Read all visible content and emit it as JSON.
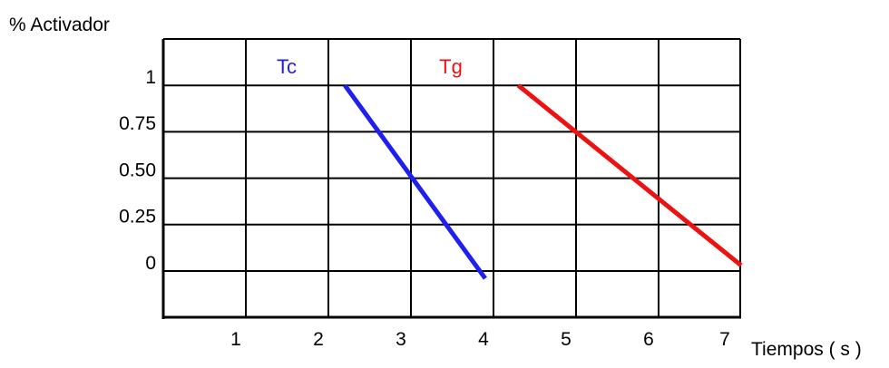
{
  "chart_data": {
    "type": "line",
    "ylabel": "% Activador",
    "xlabel": "Tiempos ( s )",
    "x_ticks": [
      "1",
      "2",
      "3",
      "4",
      "5",
      "6",
      "7"
    ],
    "y_ticks": [
      "1",
      "0.75",
      "0.50",
      "0.25",
      "0"
    ],
    "xlim": [
      0,
      7.2
    ],
    "ylim": [
      -0.25,
      1.25
    ],
    "grid": true,
    "series": [
      {
        "name": "Tc",
        "color": "#1f1ff0",
        "points": [
          {
            "x": 2.2,
            "y": 1.0
          },
          {
            "x": 3.9,
            "y": -0.04
          }
        ]
      },
      {
        "name": "Tg",
        "color": "#ee1111",
        "points": [
          {
            "x": 4.3,
            "y": 1.0
          },
          {
            "x": 7.0,
            "y": 0.03
          }
        ]
      }
    ]
  }
}
